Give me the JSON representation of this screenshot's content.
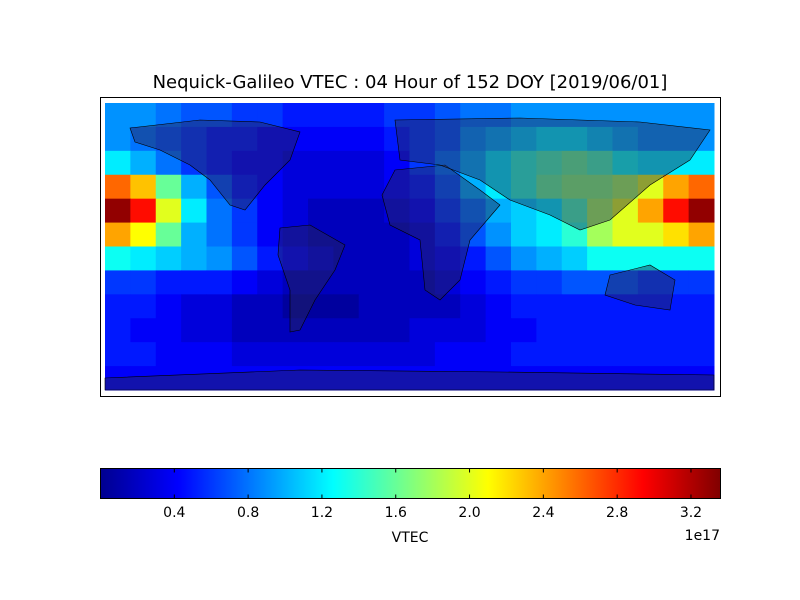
{
  "chart_data": {
    "type": "heatmap",
    "title": "Nequick-Galileo VTEC : 04 Hour of 152 DOY [2019/06/01]",
    "colormap": "jet",
    "z": [
      [
        0.9,
        0.9,
        0.8,
        0.7,
        0.7,
        0.6,
        0.6,
        0.5,
        0.5,
        0.5,
        0.5,
        0.6,
        0.6,
        0.7,
        0.8,
        0.8,
        0.9,
        0.9,
        0.9,
        0.9,
        0.9,
        0.9,
        0.9,
        0.9
      ],
      [
        0.9,
        0.8,
        0.7,
        0.6,
        0.5,
        0.5,
        0.4,
        0.4,
        0.4,
        0.4,
        0.4,
        0.5,
        0.6,
        0.7,
        0.9,
        1.0,
        1.1,
        1.2,
        1.2,
        1.1,
        1.0,
        0.9,
        0.9,
        0.9
      ],
      [
        1.2,
        1.0,
        0.8,
        0.6,
        0.5,
        0.4,
        0.4,
        0.3,
        0.3,
        0.3,
        0.3,
        0.4,
        0.6,
        0.8,
        1.0,
        1.2,
        1.4,
        1.5,
        1.6,
        1.5,
        1.3,
        1.2,
        1.2,
        1.2
      ],
      [
        2.6,
        2.3,
        1.6,
        1.0,
        0.7,
        0.5,
        0.4,
        0.3,
        0.3,
        0.3,
        0.3,
        0.4,
        0.5,
        0.7,
        1.0,
        1.2,
        1.4,
        1.6,
        1.7,
        1.7,
        1.8,
        2.0,
        2.4,
        2.6
      ],
      [
        3.3,
        2.9,
        2.0,
        1.2,
        0.8,
        0.6,
        0.4,
        0.3,
        0.2,
        0.2,
        0.2,
        0.3,
        0.4,
        0.6,
        0.8,
        1.0,
        1.1,
        1.2,
        1.5,
        1.8,
        2.0,
        2.4,
        2.9,
        3.3
      ],
      [
        2.4,
        2.1,
        1.6,
        1.0,
        0.8,
        0.6,
        0.4,
        0.3,
        0.2,
        0.2,
        0.2,
        0.2,
        0.3,
        0.5,
        0.7,
        0.9,
        1.1,
        1.2,
        1.4,
        1.8,
        2.0,
        2.0,
        2.2,
        2.4
      ],
      [
        1.3,
        1.2,
        1.1,
        1.0,
        0.9,
        0.7,
        0.5,
        0.4,
        0.3,
        0.2,
        0.2,
        0.2,
        0.3,
        0.4,
        0.5,
        0.7,
        0.9,
        1.0,
        1.1,
        1.3,
        1.3,
        1.3,
        1.3,
        1.3
      ],
      [
        0.6,
        0.6,
        0.5,
        0.5,
        0.5,
        0.4,
        0.3,
        0.2,
        0.2,
        0.2,
        0.2,
        0.2,
        0.2,
        0.3,
        0.4,
        0.5,
        0.6,
        0.6,
        0.7,
        0.7,
        0.7,
        0.6,
        0.6,
        0.6
      ],
      [
        0.5,
        0.5,
        0.4,
        0.3,
        0.3,
        0.2,
        0.2,
        0.1,
        0.1,
        0.1,
        0.2,
        0.2,
        0.2,
        0.2,
        0.3,
        0.4,
        0.5,
        0.5,
        0.5,
        0.5,
        0.5,
        0.5,
        0.5,
        0.5
      ],
      [
        0.5,
        0.4,
        0.4,
        0.3,
        0.3,
        0.2,
        0.2,
        0.2,
        0.2,
        0.2,
        0.2,
        0.2,
        0.3,
        0.3,
        0.3,
        0.4,
        0.4,
        0.5,
        0.5,
        0.5,
        0.5,
        0.5,
        0.5,
        0.5
      ],
      [
        0.5,
        0.5,
        0.4,
        0.4,
        0.4,
        0.3,
        0.3,
        0.3,
        0.3,
        0.3,
        0.3,
        0.3,
        0.3,
        0.4,
        0.4,
        0.4,
        0.5,
        0.5,
        0.5,
        0.5,
        0.5,
        0.5,
        0.5,
        0.5
      ],
      [
        0.4,
        0.4,
        0.4,
        0.4,
        0.4,
        0.4,
        0.4,
        0.4,
        0.4,
        0.4,
        0.4,
        0.4,
        0.4,
        0.4,
        0.4,
        0.4,
        0.4,
        0.4,
        0.4,
        0.4,
        0.4,
        0.4,
        0.4,
        0.4
      ]
    ],
    "clim": [
      0,
      3.36
    ],
    "colorbar_ticks": [
      0.4,
      0.8,
      1.2,
      1.6,
      {
        "value": 2,
        "label": "2.0"
      },
      2.4,
      2.8,
      3.2
    ],
    "colorbar_label": "VTEC",
    "colorbar_offset_label": "1e17"
  }
}
